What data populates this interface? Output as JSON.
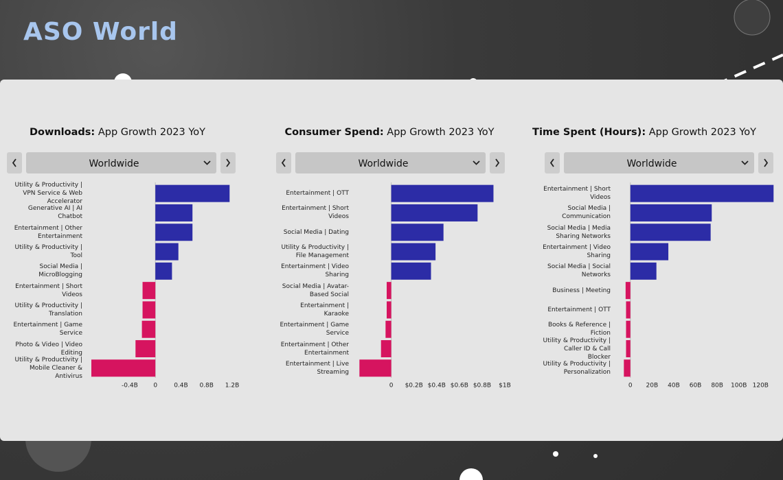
{
  "brand": "ASO World",
  "chart_data": [
    {
      "type": "bar",
      "title": "Downloads:",
      "subtitle": "App Growth 2023 YoY",
      "region": "Worldwide",
      "categories": [
        "Utility & Productivity | VPN Service & Web Accelerator",
        "Generative AI | AI Chatbot",
        "Entertainment | Other Entertainment",
        "Utility & Productivity | Tool",
        "Social Media | MicroBlogging",
        "Entertainment | Short Videos",
        "Utility & Productivity | Translation",
        "Entertainment | Game Service",
        "Photo & Video | Video Editing",
        "Utility & Productivity | Mobile Cleaner & Antivirus"
      ],
      "values": [
        1.16,
        0.58,
        0.58,
        0.36,
        0.26,
        -0.2,
        -0.2,
        -0.21,
        -0.31,
        -1.0
      ],
      "positive_color": "#2c2ca6",
      "negative_color": "#d6145f",
      "xlim": [
        -1.0,
        1.2
      ],
      "xticks": [
        {
          "value": -0.4,
          "label": "-0.4B"
        },
        0,
        {
          "value": 0.4,
          "label": "0.4B"
        },
        {
          "value": 0.8,
          "label": "0.8B"
        },
        {
          "value": 1.2,
          "label": "1.2B"
        }
      ]
    },
    {
      "type": "bar",
      "title": "Consumer Spend:",
      "subtitle": "App Growth 2023 YoY",
      "region": "Worldwide",
      "categories": [
        "Entertainment | OTT",
        "Entertainment | Short Videos",
        "Social Media | Dating",
        "Utility & Productivity | File Management",
        "Entertainment | Video Sharing",
        "Social Media | Avatar-Based Social",
        "Entertainment | Karaoke",
        "Entertainment | Game Service",
        "Entertainment | Other Entertainment",
        "Entertainment | Live Streaming"
      ],
      "values": [
        0.9,
        0.76,
        0.46,
        0.39,
        0.35,
        -0.04,
        -0.04,
        -0.05,
        -0.09,
        -0.28
      ],
      "positive_color": "#2c2ca6",
      "negative_color": "#d6145f",
      "xlim": [
        -0.3,
        1.0
      ],
      "xticks": [
        0,
        {
          "value": 0.2,
          "label": "$0.2B"
        },
        {
          "value": 0.4,
          "label": "$0.4B"
        },
        {
          "value": 0.6,
          "label": "$0.6B"
        },
        {
          "value": 0.8,
          "label": "$0.8B"
        },
        {
          "value": 1,
          "label": "$1B"
        }
      ]
    },
    {
      "type": "bar",
      "title": "Time Spent (Hours):",
      "subtitle": "App Growth 2023 YoY",
      "region": "Worldwide",
      "categories": [
        "Entertainment | Short Videos",
        "Social Media | Communication",
        "Social Media | Media Sharing Networks",
        "Entertainment | Video Sharing",
        "Social Media | Social Networks",
        "Business | Meeting",
        "Entertainment | OTT",
        "Books & Reference | Fiction",
        "Utility & Productivity | Caller ID & Call Blocker",
        "Utility & Productivity | Personalization"
      ],
      "values": [
        132,
        75,
        74,
        35,
        24,
        -4.4,
        -4,
        -4,
        -4,
        -6
      ],
      "positive_color": "#2c2ca6",
      "negative_color": "#d6145f",
      "xlim": [
        -10,
        135
      ],
      "xticks": [
        0,
        {
          "value": 20,
          "label": "20B"
        },
        {
          "value": 40,
          "label": "40B"
        },
        {
          "value": 60,
          "label": "60B"
        },
        {
          "value": 80,
          "label": "80B"
        },
        {
          "value": 100,
          "label": "100B"
        },
        {
          "value": 120,
          "label": "120B"
        }
      ]
    }
  ]
}
